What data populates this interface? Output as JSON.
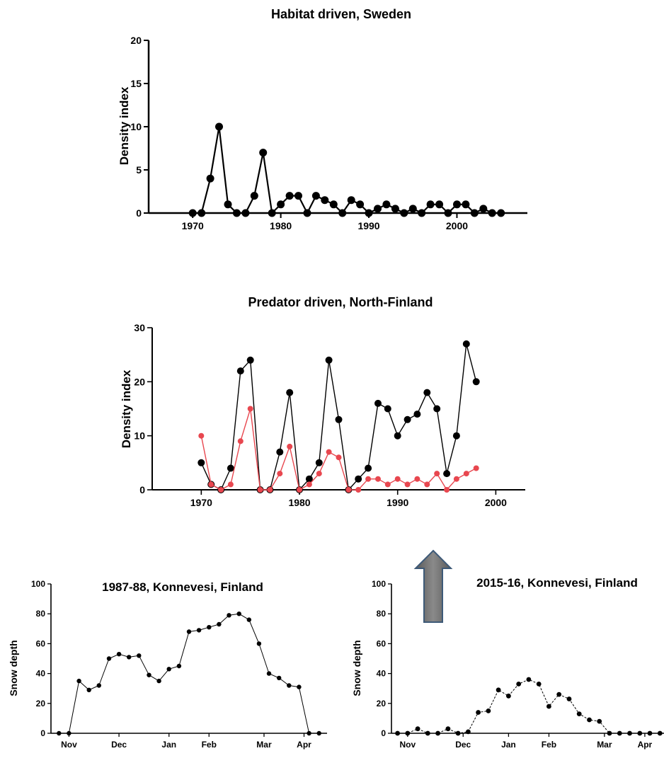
{
  "arrow_color": "#6d6d6d",
  "chart_data": [
    {
      "type": "line",
      "title": "Habitat driven, Sweden",
      "ylabel": "Density index",
      "xlim": [
        1965,
        2008
      ],
      "ylim": [
        0,
        20
      ],
      "x_ticks": [
        1970,
        1980,
        1990,
        2000
      ],
      "y_ticks": [
        0,
        5,
        10,
        15,
        20
      ],
      "series": [
        {
          "color": "#000000",
          "x": [
            1970,
            1971,
            1972,
            1973,
            1974,
            1975,
            1976,
            1977,
            1978,
            1979,
            1980,
            1981,
            1982,
            1983,
            1984,
            1985,
            1986,
            1987,
            1988,
            1989,
            1990,
            1991,
            1992,
            1993,
            1994,
            1995,
            1996,
            1997,
            1998,
            1999,
            2000,
            2001,
            2002,
            2003,
            2004,
            2005
          ],
          "y": [
            0,
            0,
            4,
            10,
            1,
            0,
            0,
            2,
            7,
            0,
            1,
            2,
            2,
            0,
            2,
            1.5,
            1,
            0,
            1.5,
            1,
            0,
            0.5,
            1,
            0.5,
            0,
            0.5,
            0,
            1,
            1,
            0,
            1,
            1,
            0,
            0.5,
            0,
            0
          ]
        }
      ]
    },
    {
      "type": "line",
      "title": "Predator driven, North-Finland",
      "ylabel": "Density index",
      "xlim": [
        1965,
        2003
      ],
      "ylim": [
        0,
        30
      ],
      "x_ticks": [
        1970,
        1980,
        1990,
        2000
      ],
      "y_ticks": [
        0,
        10,
        20,
        30
      ],
      "series": [
        {
          "color": "#000000",
          "x": [
            1970,
            1971,
            1972,
            1973,
            1974,
            1975,
            1976,
            1977,
            1978,
            1979,
            1980,
            1981,
            1982,
            1983,
            1984,
            1985,
            1986,
            1987,
            1988,
            1989,
            1990,
            1991,
            1992,
            1993,
            1994,
            1995,
            1996,
            1997,
            1998
          ],
          "y": [
            5,
            1,
            0,
            4,
            22,
            24,
            0,
            0,
            7,
            18,
            0,
            2,
            5,
            24,
            13,
            0,
            2,
            4,
            16,
            15,
            10,
            13,
            14,
            18,
            15,
            3,
            10,
            27,
            20
          ]
        },
        {
          "color": "#e8474f",
          "x": [
            1970,
            1971,
            1972,
            1973,
            1974,
            1975,
            1976,
            1977,
            1978,
            1979,
            1980,
            1981,
            1982,
            1983,
            1984,
            1985,
            1986,
            1987,
            1988,
            1989,
            1990,
            1991,
            1992,
            1993,
            1994,
            1995,
            1996,
            1997,
            1998
          ],
          "y": [
            10,
            1,
            0,
            1,
            9,
            15,
            0,
            0,
            3,
            8,
            0,
            1,
            3,
            7,
            6,
            0,
            0,
            2,
            2,
            1,
            2,
            1,
            2,
            1,
            3,
            0,
            2,
            3,
            4
          ]
        }
      ]
    },
    {
      "type": "line",
      "title": "1987-88, Konnevesi, Finland",
      "ylabel": "Snow depth",
      "ylim": [
        0,
        100
      ],
      "y_ticks": [
        0,
        20,
        40,
        60,
        80,
        100
      ],
      "x_ticks": [
        {
          "label": "Nov",
          "at": 1
        },
        {
          "label": "Dec",
          "at": 6
        },
        {
          "label": "Jan",
          "at": 11
        },
        {
          "label": "Feb",
          "at": 15
        },
        {
          "label": "Mar",
          "at": 20.5
        },
        {
          "label": "Apr",
          "at": 24.5
        }
      ],
      "xlim": [
        -0.8,
        26.8
      ],
      "series": [
        {
          "color": "#000000",
          "x": [
            0,
            1,
            2,
            3,
            4,
            5,
            6,
            7,
            8,
            9,
            10,
            11,
            12,
            13,
            14,
            15,
            16,
            17,
            18,
            19,
            20,
            21,
            22,
            23,
            24,
            25,
            26
          ],
          "y": [
            0,
            0,
            35,
            29,
            32,
            50,
            53,
            51,
            52,
            39,
            35,
            43,
            45,
            68,
            69,
            71,
            73,
            79,
            80,
            76,
            60,
            40,
            37,
            32,
            31,
            0,
            0
          ]
        }
      ]
    },
    {
      "type": "line",
      "title": "2015-16, Konnevesi, Finland",
      "ylabel": "Snow depth",
      "ylim": [
        0,
        100
      ],
      "y_ticks": [
        0,
        20,
        40,
        60,
        80,
        100
      ],
      "x_ticks": [
        {
          "label": "Nov",
          "at": 1
        },
        {
          "label": "Dec",
          "at": 6.5
        },
        {
          "label": "Jan",
          "at": 11
        },
        {
          "label": "Feb",
          "at": 15
        },
        {
          "label": "Mar",
          "at": 20.5
        },
        {
          "label": "Apr",
          "at": 24.5
        }
      ],
      "xlim": [
        -0.6,
        26.4
      ],
      "series": [
        {
          "color": "#000000",
          "dashed": true,
          "x": [
            0,
            1,
            2,
            3,
            4,
            5,
            6,
            7,
            8,
            9,
            10,
            11,
            12,
            13,
            14,
            15,
            16,
            17,
            18,
            19,
            20,
            21,
            22,
            23,
            24,
            25,
            26
          ],
          "y": [
            0,
            0,
            3,
            0,
            0,
            3,
            0,
            1,
            14,
            15,
            29,
            25,
            33,
            36,
            33,
            18,
            26,
            23,
            13,
            9,
            8,
            0,
            0,
            0,
            0,
            0,
            0
          ]
        }
      ]
    }
  ]
}
